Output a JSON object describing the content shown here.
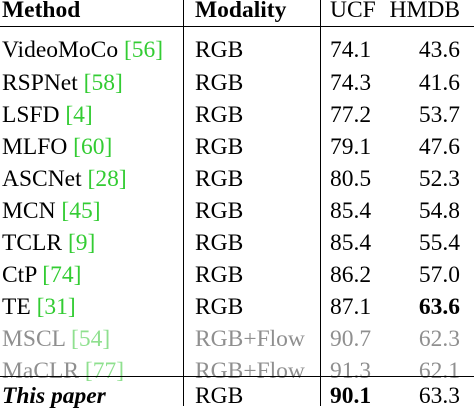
{
  "header": {
    "method": "Method",
    "modality": "Modality",
    "ucf": "UCF",
    "hmdb": "HMDB"
  },
  "rows": [
    {
      "name": "VideoMoCo",
      "ref": "56",
      "modality": "RGB",
      "ucf": "74.1",
      "hmdb": "43.6"
    },
    {
      "name": "RSPNet",
      "ref": "58",
      "modality": "RGB",
      "ucf": "74.3",
      "hmdb": "41.6"
    },
    {
      "name": "LSFD",
      "ref": "4",
      "modality": "RGB",
      "ucf": "77.2",
      "hmdb": "53.7"
    },
    {
      "name": "MLFO",
      "ref": "60",
      "modality": "RGB",
      "ucf": "79.1",
      "hmdb": "47.6"
    },
    {
      "name": "ASCNet",
      "ref": "28",
      "modality": "RGB",
      "ucf": "80.5",
      "hmdb": "52.3"
    },
    {
      "name": "MCN",
      "ref": "45",
      "modality": "RGB",
      "ucf": "85.4",
      "hmdb": "54.8"
    },
    {
      "name": "TCLR",
      "ref": "9",
      "modality": "RGB",
      "ucf": "85.4",
      "hmdb": "55.4"
    },
    {
      "name": "CtP",
      "ref": "74",
      "modality": "RGB",
      "ucf": "86.2",
      "hmdb": "57.0"
    },
    {
      "name": "TE",
      "ref": "31",
      "modality": "RGB",
      "ucf": "87.1",
      "hmdb": "63.6"
    },
    {
      "name": "MSCL",
      "ref": "54",
      "modality": "RGB+Flow",
      "ucf": "90.7",
      "hmdb": "62.3"
    },
    {
      "name": "MaCLR",
      "ref": "77",
      "modality": "RGB+Flow",
      "ucf": "91.3",
      "hmdb": "62.1"
    }
  ],
  "final": {
    "name": "This paper",
    "modality": "RGB",
    "ucf": "90.1",
    "hmdb": "63.3"
  },
  "colors": {
    "reference_link": "#33cc33",
    "muted_text": "#8f8f8f"
  }
}
